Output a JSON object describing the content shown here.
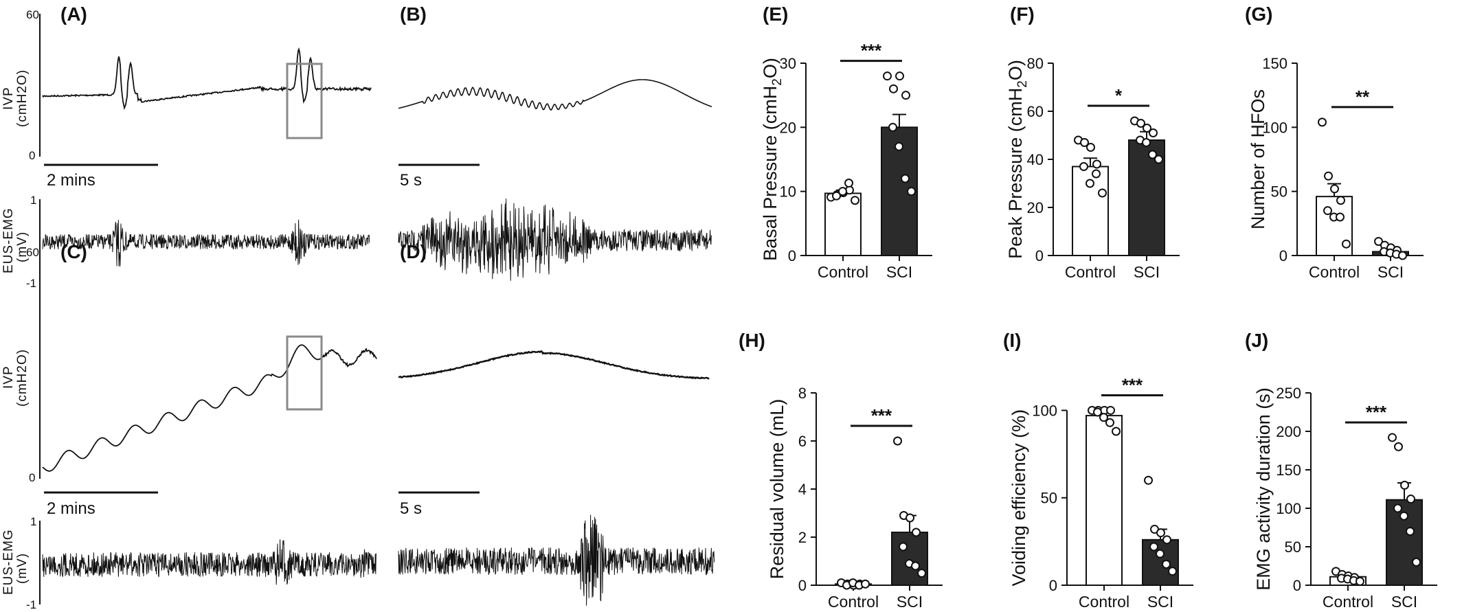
{
  "traces": [
    {
      "id": "A",
      "label": "(A)",
      "ivp_axis": "IVP",
      "ivp_unit": "(cmH2O)",
      "ivp_ticks": [
        "60",
        "0"
      ],
      "emg_axis": "EUS-EMG",
      "emg_unit": "(mV)",
      "emg_ticks": [
        "1",
        "-1"
      ],
      "scale_bar": "2 mins"
    },
    {
      "id": "B",
      "label": "(B)",
      "scale_bar": "5 s"
    },
    {
      "id": "C",
      "label": "(C)",
      "ivp_axis": "IVP",
      "ivp_unit": "(cmH2O)",
      "ivp_ticks": [
        "60",
        "0"
      ],
      "emg_axis": "EUS-EMG",
      "emg_unit": "(mV)",
      "emg_ticks": [
        "1",
        "-1"
      ],
      "scale_bar": "2 mins"
    },
    {
      "id": "D",
      "label": "(D)",
      "scale_bar": "5 s"
    }
  ],
  "chart_data": [
    {
      "panel": "(E)",
      "type": "bar",
      "title": "",
      "ylabel": "Basal Pressure (cmH2O)",
      "ylim": [
        0,
        30
      ],
      "yticks": [
        0,
        10,
        20,
        30
      ],
      "categories": [
        "Control",
        "SCI"
      ],
      "values": [
        9.7,
        20.0
      ],
      "sem": [
        0.5,
        2.0
      ],
      "points": [
        [
          9.1,
          9.5,
          9.8,
          10.2,
          9.3,
          10.0,
          11.3,
          8.6
        ],
        [
          28.0,
          26.0,
          28.0,
          25.0,
          20.0,
          17.0,
          12.0,
          10.0
        ]
      ],
      "significance": "***",
      "colors": [
        "#ffffff",
        "#2b2b2b"
      ]
    },
    {
      "panel": "(F)",
      "type": "bar",
      "title": "",
      "ylabel": "Peak Pressure (cmH2O)",
      "ylim": [
        0,
        80
      ],
      "yticks": [
        0,
        20,
        40,
        60,
        80
      ],
      "categories": [
        "Control",
        "SCI"
      ],
      "values": [
        37.0,
        48.0
      ],
      "sem": [
        3.5,
        3.5
      ],
      "points": [
        [
          48.0,
          47.0,
          45.0,
          38.0,
          37.0,
          30.0,
          34.0,
          26.0
        ],
        [
          56.0,
          55.0,
          53.0,
          51.0,
          48.0,
          47.0,
          42.0,
          40.0
        ]
      ],
      "significance": "*",
      "colors": [
        "#ffffff",
        "#2b2b2b"
      ]
    },
    {
      "panel": "(G)",
      "type": "bar",
      "title": "",
      "ylabel": "Number of HFOs",
      "ylim": [
        0,
        150
      ],
      "yticks": [
        0,
        50,
        100,
        150
      ],
      "categories": [
        "Control",
        "SCI"
      ],
      "values": [
        46,
        3
      ],
      "sem": [
        10,
        1
      ],
      "points": [
        [
          104,
          62,
          52,
          43,
          35,
          30,
          30,
          9
        ],
        [
          11,
          8,
          6,
          4,
          3,
          2,
          1,
          0
        ]
      ],
      "significance": "**",
      "colors": [
        "#ffffff",
        "#2b2b2b"
      ]
    },
    {
      "panel": "(H)",
      "type": "bar",
      "title": "",
      "ylabel": "Residual volume (mL)",
      "ylim": [
        0,
        8
      ],
      "yticks": [
        0,
        2,
        4,
        6,
        8
      ],
      "categories": [
        "Control",
        "SCI"
      ],
      "values": [
        0.05,
        2.2
      ],
      "sem": [
        0.02,
        0.7
      ],
      "points": [
        [
          0.1,
          0.05,
          0.0,
          0.05,
          0.0,
          0.1,
          0.0,
          0.05
        ],
        [
          6.0,
          2.9,
          2.8,
          2.2,
          1.6,
          0.9,
          0.8,
          0.5
        ]
      ],
      "significance": "***",
      "colors": [
        "#ffffff",
        "#2b2b2b"
      ]
    },
    {
      "panel": "(I)",
      "type": "bar",
      "title": "",
      "ylabel": "Voiding efficiency (%)",
      "ylim": [
        0,
        110
      ],
      "yticks": [
        0,
        50,
        100
      ],
      "categories": [
        "Control",
        "SCI"
      ],
      "values": [
        97,
        26
      ],
      "sem": [
        2,
        6
      ],
      "points": [
        [
          100,
          100,
          100,
          100,
          99,
          96,
          93,
          88
        ],
        [
          60,
          32,
          30,
          26,
          22,
          18,
          12,
          8
        ]
      ],
      "significance": "***",
      "colors": [
        "#ffffff",
        "#2b2b2b"
      ]
    },
    {
      "panel": "(J)",
      "type": "bar",
      "title": "",
      "ylabel": "EMG activity duration (s)",
      "ylim": [
        0,
        250
      ],
      "yticks": [
        0,
        50,
        100,
        150,
        200,
        250
      ],
      "categories": [
        "Control",
        "SCI"
      ],
      "values": [
        11,
        111
      ],
      "sem": [
        2,
        22
      ],
      "points": [
        [
          18,
          14,
          12,
          10,
          9,
          8,
          6,
          5
        ],
        [
          192,
          180,
          130,
          112,
          100,
          90,
          70,
          30
        ]
      ],
      "significance": "***",
      "colors": [
        "#ffffff",
        "#2b2b2b"
      ]
    }
  ]
}
